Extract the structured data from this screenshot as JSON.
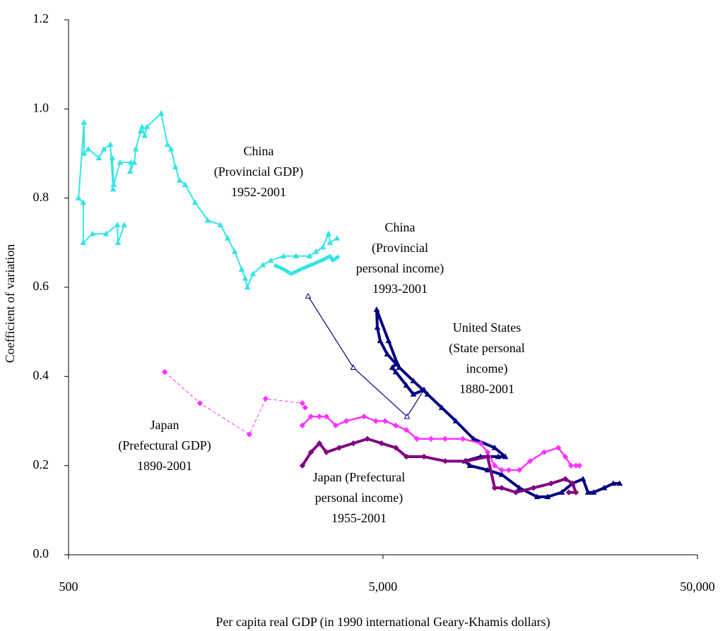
{
  "chart_data": {
    "type": "line",
    "x_label": "Per capita real GDP (in 1990 international Geary-Khamis dollars)",
    "y_label": "Coefficient of variation",
    "xscale": "log",
    "grid": false,
    "xlim": [
      500,
      50000
    ],
    "xticks": [
      500,
      {
        "value": 5000,
        "label": "5,000"
      },
      {
        "value": 50000,
        "label": "50,000"
      }
    ],
    "ylim": [
      0,
      1.2
    ],
    "yticks": [
      {
        "value": 0,
        "label": "0.0"
      },
      0.2,
      0.4,
      0.6,
      0.8,
      {
        "value": 1,
        "label": "1.0"
      },
      1.2
    ],
    "annotations": [
      [
        "China",
        "(Provincial GDP)",
        "1952-2001"
      ],
      [
        "China",
        "(Provincial",
        "personal income)",
        "1993-2001"
      ],
      [
        "United States",
        "(State personal",
        "income)",
        "1880-2001"
      ],
      [
        "Japan",
        "(Prefectural GDP)",
        "1890-2001"
      ],
      [
        "Japan (Prefectural",
        "personal income)",
        "1955-2001"
      ]
    ],
    "series": [
      {
        "color": "#33E5E5",
        "line_width": 2,
        "marker": "triangle",
        "x": [
          752,
          718,
          715,
          658,
          596,
          557,
          557,
          538,
          560,
          560,
          578,
          625,
          648,
          679,
          693,
          689,
          696,
          729,
          789,
          785,
          809,
          818,
          848,
          857,
          874,
          888,
          985,
          1032,
          1059,
          1093,
          1127,
          1175,
          1263,
          1386,
          1521,
          1602,
          1688,
          1777,
          1823,
          1852,
          1929,
          2075,
          2196,
          2411,
          2646,
          2919,
          3058,
          3221,
          3357,
          3392,
          3572
        ],
        "values": [
          0.74,
          0.7,
          0.74,
          0.72,
          0.72,
          0.7,
          0.79,
          0.8,
          0.97,
          0.9,
          0.91,
          0.89,
          0.91,
          0.92,
          0.82,
          0.89,
          0.83,
          0.88,
          0.88,
          0.86,
          0.88,
          0.91,
          0.95,
          0.96,
          0.94,
          0.96,
          0.99,
          0.92,
          0.91,
          0.87,
          0.84,
          0.83,
          0.79,
          0.75,
          0.74,
          0.71,
          0.68,
          0.64,
          0.62,
          0.6,
          0.63,
          0.65,
          0.66,
          0.67,
          0.67,
          0.67,
          0.68,
          0.69,
          0.72,
          0.7,
          0.71
        ]
      },
      {
        "color": "#33E5E5",
        "line_width": 5,
        "marker": "none",
        "x": [
          2254,
          2423,
          2552,
          2730,
          2950,
          3188,
          3393,
          3463,
          3628
        ],
        "values": [
          0.65,
          0.64,
          0.63,
          0.64,
          0.65,
          0.66,
          0.67,
          0.66,
          0.67
        ]
      },
      {
        "color": "#000080",
        "line_width": 1.2,
        "marker": "open-triangle",
        "x": [
          2890,
          4023,
          5962,
          6750
        ],
        "values": [
          0.58,
          0.42,
          0.31,
          0.37
        ]
      },
      {
        "color": "#000080",
        "line_width": 4,
        "marker": "triangle",
        "x": [
          6750,
          6246,
          5934,
          5492,
          5352,
          5546,
          5208,
          4773,
          4797,
          4897,
          5157,
          5634,
          6246,
          6929,
          7686,
          8521,
          9699,
          11327,
          12242,
          11627,
          10212,
          9114,
          9449,
          10757,
          11928,
          13576,
          15451,
          16697,
          18516,
          20017,
          21627,
          22427,
          23371,
          25254,
          27014,
          28293
        ],
        "values": [
          0.37,
          0.36,
          0.38,
          0.41,
          0.42,
          0.43,
          0.48,
          0.55,
          0.51,
          0.48,
          0.45,
          0.42,
          0.39,
          0.36,
          0.33,
          0.3,
          0.26,
          0.24,
          0.22,
          0.22,
          0.22,
          0.21,
          0.2,
          0.19,
          0.18,
          0.15,
          0.13,
          0.13,
          0.14,
          0.16,
          0.17,
          0.14,
          0.14,
          0.15,
          0.16,
          0.16
        ]
      },
      {
        "color": "#FF33FF",
        "line_width": 1,
        "dash": true,
        "marker": "diamond",
        "x": [
          1011,
          1309,
          1880,
          2118,
          2771,
          2829
        ],
        "values": [
          0.41,
          0.34,
          0.27,
          0.35,
          0.34,
          0.33
        ]
      },
      {
        "color": "#FF33FF",
        "line_width": 2.5,
        "marker": "diamond",
        "x": [
          2771,
          2950,
          3139,
          3305,
          3536,
          3821,
          4348,
          4747,
          5077,
          5492,
          5934,
          6412,
          7107,
          7884,
          8970,
          10212,
          10757,
          11327,
          11928,
          12559,
          13576,
          14671,
          16271,
          18041,
          19006,
          19812,
          20540,
          21072
        ],
        "values": [
          0.29,
          0.31,
          0.31,
          0.31,
          0.29,
          0.3,
          0.31,
          0.3,
          0.3,
          0.29,
          0.28,
          0.26,
          0.26,
          0.26,
          0.26,
          0.25,
          0.23,
          0.2,
          0.19,
          0.19,
          0.19,
          0.21,
          0.23,
          0.24,
          0.22,
          0.2,
          0.2,
          0.2
        ]
      },
      {
        "color": "#800080",
        "line_width": 4,
        "marker": "diamond",
        "x": [
          2771,
          2950,
          3139,
          3305,
          3628,
          4023,
          4463,
          4948,
          5492,
          5934,
          6750,
          7884,
          9208,
          10757,
          11327,
          11928,
          13232,
          15054,
          17127,
          19006,
          20017,
          20540,
          19495
        ],
        "values": [
          0.2,
          0.23,
          0.25,
          0.23,
          0.24,
          0.25,
          0.26,
          0.25,
          0.24,
          0.22,
          0.22,
          0.21,
          0.21,
          0.22,
          0.15,
          0.15,
          0.14,
          0.15,
          0.16,
          0.17,
          0.16,
          0.14,
          0.14
        ]
      }
    ]
  }
}
